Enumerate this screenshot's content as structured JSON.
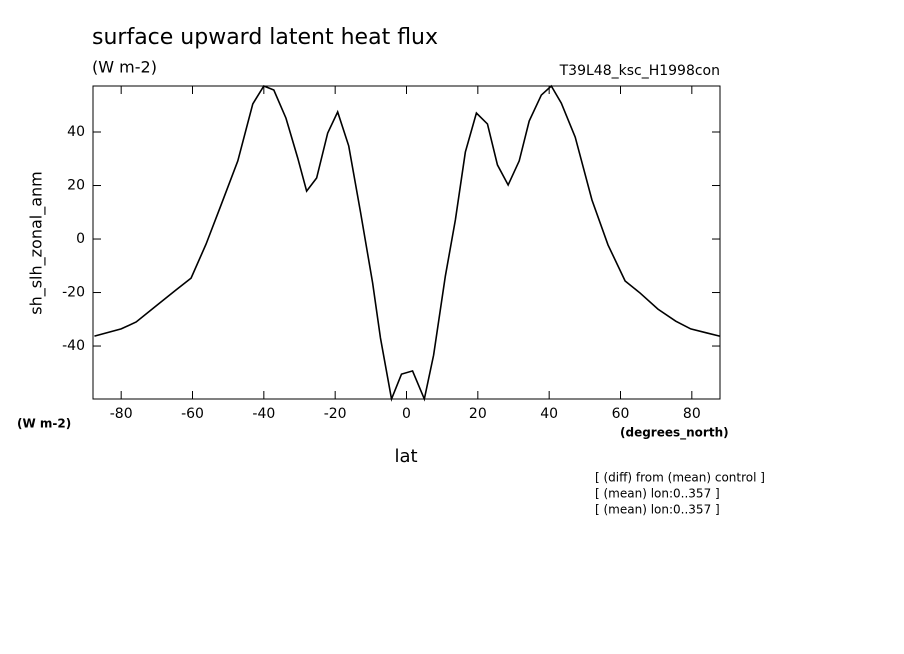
{
  "chart_data": {
    "type": "line",
    "title": "surface upward latent heat flux",
    "subtitle": "(W m-2)",
    "run_label": "T39L48_ksc_H1998con",
    "y_label": "sh_slh_zonal_anm",
    "y_unit": "(W m-2)",
    "x_unit": "(degrees_north)",
    "x_label": "lat",
    "notes": [
      "[ (diff) from (mean) control ]",
      "[ (mean) lon:0..357 ]",
      "[ (mean) lon:0..357 ]"
    ],
    "color": "#000000",
    "xlim": [
      -87.9,
      87.9
    ],
    "ylim": [
      -59.8,
      57.2
    ],
    "xticks": [
      -80,
      -60,
      -40,
      -20,
      0,
      20,
      40,
      60,
      80
    ],
    "yticks": [
      -40,
      -20,
      0,
      20,
      40
    ],
    "x": [
      -87.5,
      -80,
      -75.8,
      -70.2,
      -64.6,
      -60.4,
      -56.2,
      -52,
      -47.3,
      -43.1,
      -40,
      -37.2,
      -33.8,
      -30.5,
      -28,
      -25.2,
      -22.1,
      -19.3,
      -16.2,
      -12.9,
      -9.5,
      -7.3,
      -4.2,
      -1.4,
      1.7,
      5,
      7.6,
      10.9,
      13.7,
      16.5,
      19.6,
      22.7,
      25.5,
      28.5,
      31.6,
      34.4,
      37.8,
      40.6,
      43.4,
      47.3,
      52,
      56.5,
      61.3,
      65.5,
      70.5,
      75.5,
      79.7,
      84.2,
      87.8
    ],
    "values": [
      -36.3,
      -33.6,
      -31,
      -25,
      -19,
      -14.6,
      -1.9,
      12.7,
      29.2,
      50.5,
      57.2,
      55.7,
      45.2,
      30.3,
      17.9,
      22.8,
      39.6,
      47.5,
      34.8,
      10.1,
      -16.4,
      -37,
      -59.8,
      -50.5,
      -49.3,
      -59.8,
      -43.4,
      -13.8,
      7.1,
      32.5,
      47.1,
      43,
      27.7,
      20.2,
      29.2,
      44.1,
      53.8,
      57.2,
      50.8,
      38.1,
      14.6,
      -2.2,
      -15.7,
      -20.2,
      -26.2,
      -30.7,
      -33.6,
      -35.1,
      -36.3
    ]
  }
}
